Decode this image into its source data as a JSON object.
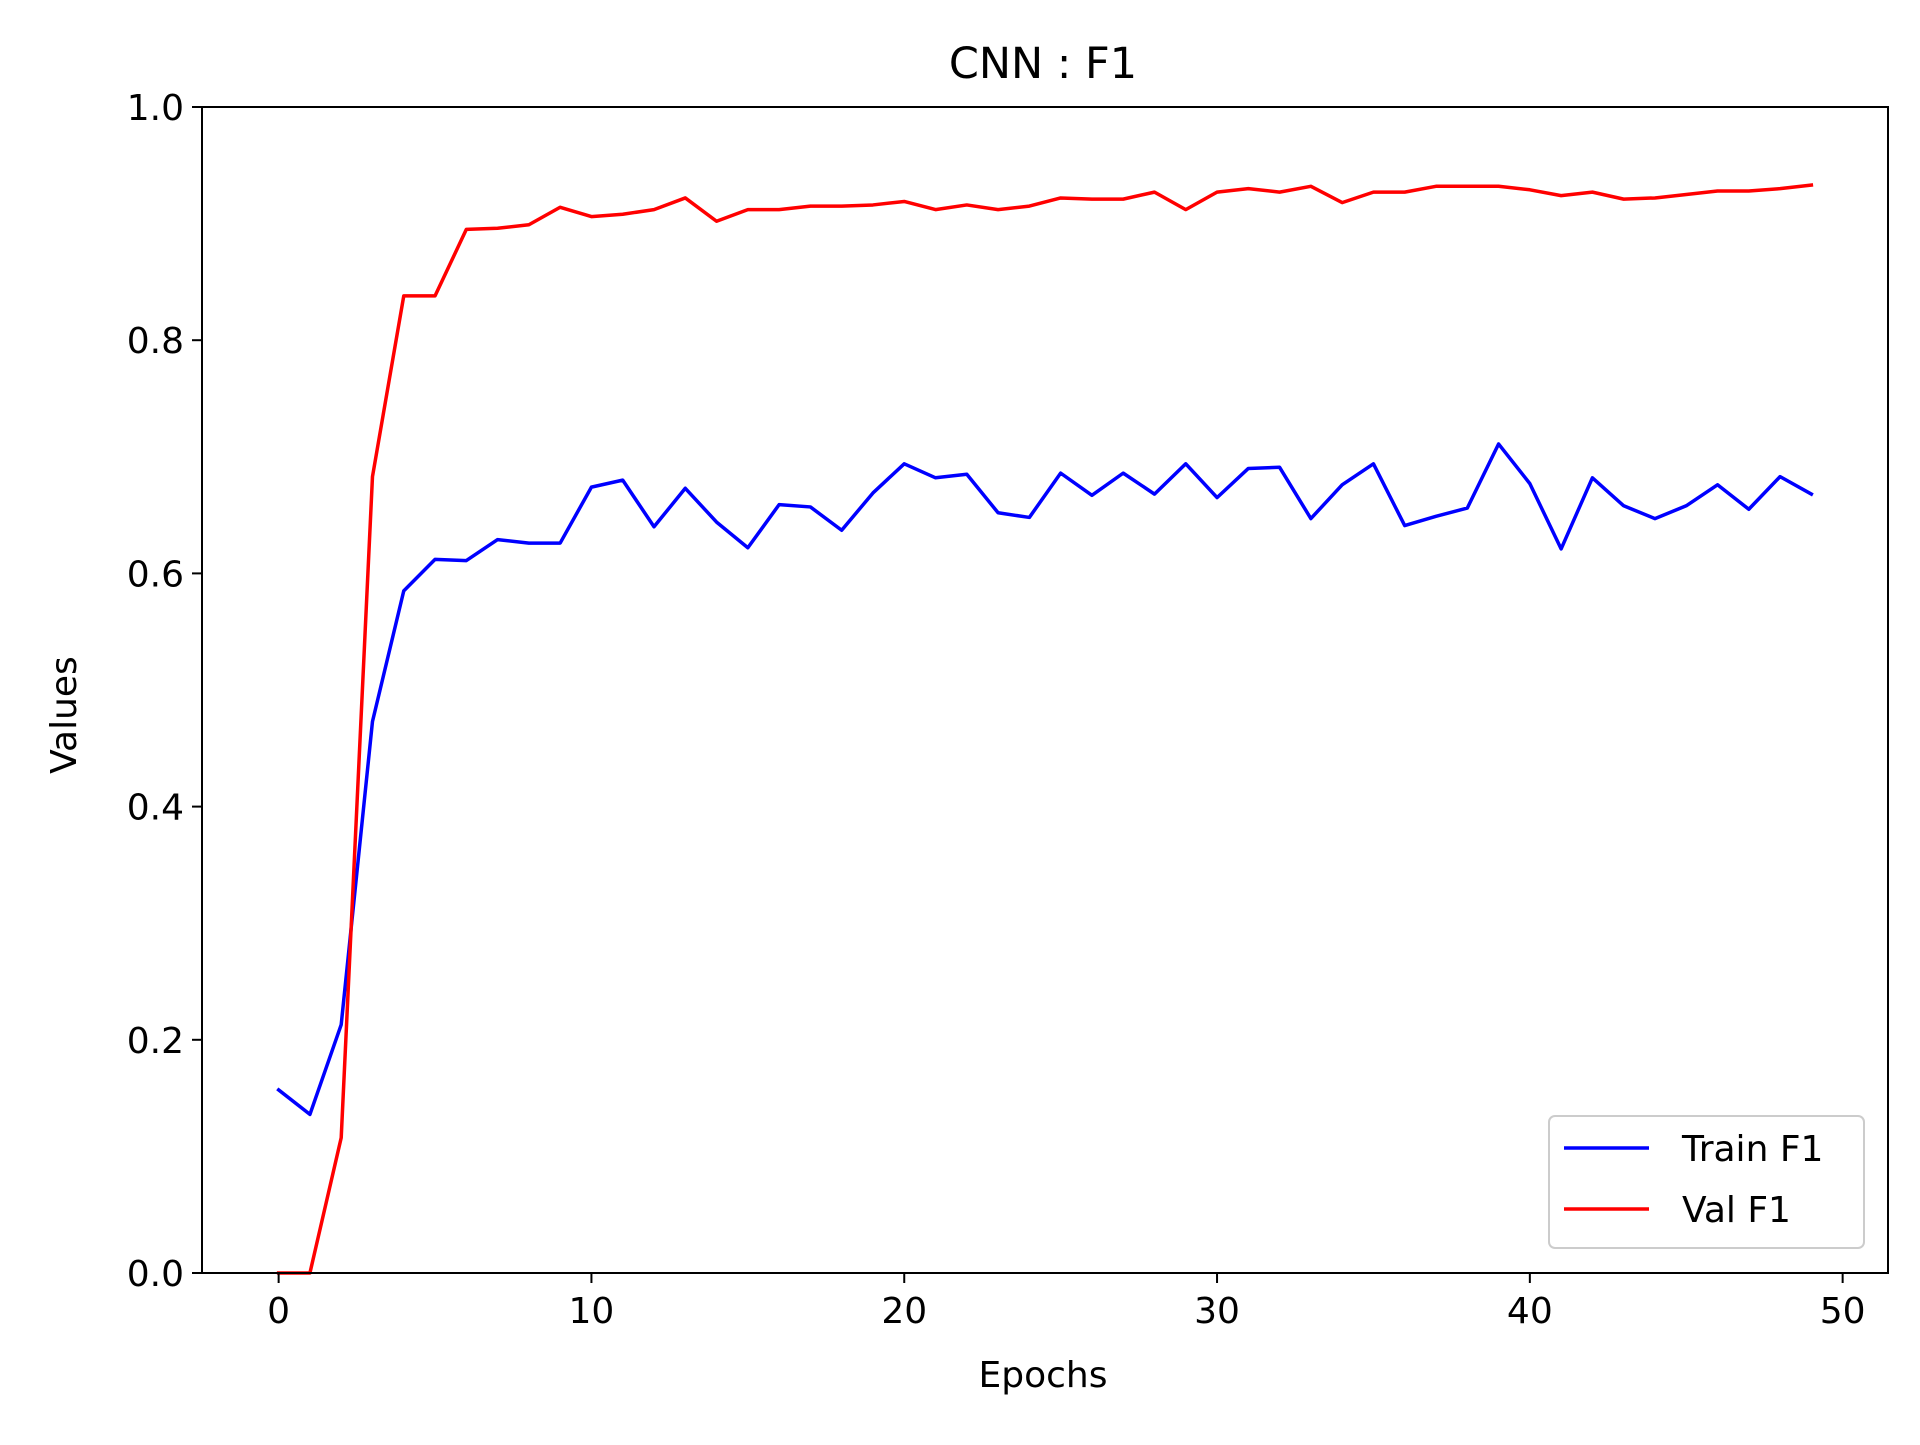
{
  "chart_data": {
    "type": "line",
    "title": "CNN : F1",
    "xlabel": "Epochs",
    "ylabel": "Values",
    "xlim": [
      -2.45,
      51.45
    ],
    "ylim": [
      0.0,
      1.0
    ],
    "xticks": [
      0,
      10,
      20,
      30,
      40,
      50
    ],
    "xtick_labels": [
      "0",
      "10",
      "20",
      "30",
      "40",
      "50"
    ],
    "yticks": [
      0.0,
      0.2,
      0.4,
      0.6,
      0.8,
      1.0
    ],
    "ytick_labels": [
      "0.0",
      "0.2",
      "0.4",
      "0.6",
      "0.8",
      "1.0"
    ],
    "grid": false,
    "legend_position": "lower-right",
    "x": [
      0,
      1,
      2,
      3,
      4,
      5,
      6,
      7,
      8,
      9,
      10,
      11,
      12,
      13,
      14,
      15,
      16,
      17,
      18,
      19,
      20,
      21,
      22,
      23,
      24,
      25,
      26,
      27,
      28,
      29,
      30,
      31,
      32,
      33,
      34,
      35,
      36,
      37,
      38,
      39,
      40,
      41,
      42,
      43,
      44,
      45,
      46,
      47,
      48,
      49
    ],
    "series": [
      {
        "name": "Train F1",
        "color": "#0000ff",
        "values": [
          0.157,
          0.136,
          0.213,
          0.473,
          0.585,
          0.612,
          0.611,
          0.629,
          0.626,
          0.626,
          0.674,
          0.68,
          0.64,
          0.673,
          0.644,
          0.622,
          0.659,
          0.657,
          0.637,
          0.669,
          0.694,
          0.682,
          0.685,
          0.652,
          0.648,
          0.686,
          0.667,
          0.686,
          0.668,
          0.694,
          0.665,
          0.69,
          0.691,
          0.647,
          0.676,
          0.694,
          0.641,
          0.649,
          0.656,
          0.711,
          0.677,
          0.621,
          0.682,
          0.658,
          0.647,
          0.658,
          0.676,
          0.655,
          0.683,
          0.668
        ]
      },
      {
        "name": "Val F1",
        "color": "#ff0000",
        "values": [
          0.0,
          0.0,
          0.116,
          0.683,
          0.838,
          0.838,
          0.895,
          0.896,
          0.899,
          0.914,
          0.906,
          0.908,
          0.912,
          0.922,
          0.902,
          0.912,
          0.912,
          0.915,
          0.915,
          0.916,
          0.919,
          0.912,
          0.916,
          0.912,
          0.915,
          0.922,
          0.921,
          0.921,
          0.927,
          0.912,
          0.927,
          0.93,
          0.927,
          0.932,
          0.918,
          0.927,
          0.927,
          0.932,
          0.932,
          0.932,
          0.929,
          0.924,
          0.927,
          0.921,
          0.922,
          0.925,
          0.928,
          0.928,
          0.93,
          0.933
        ]
      }
    ]
  }
}
